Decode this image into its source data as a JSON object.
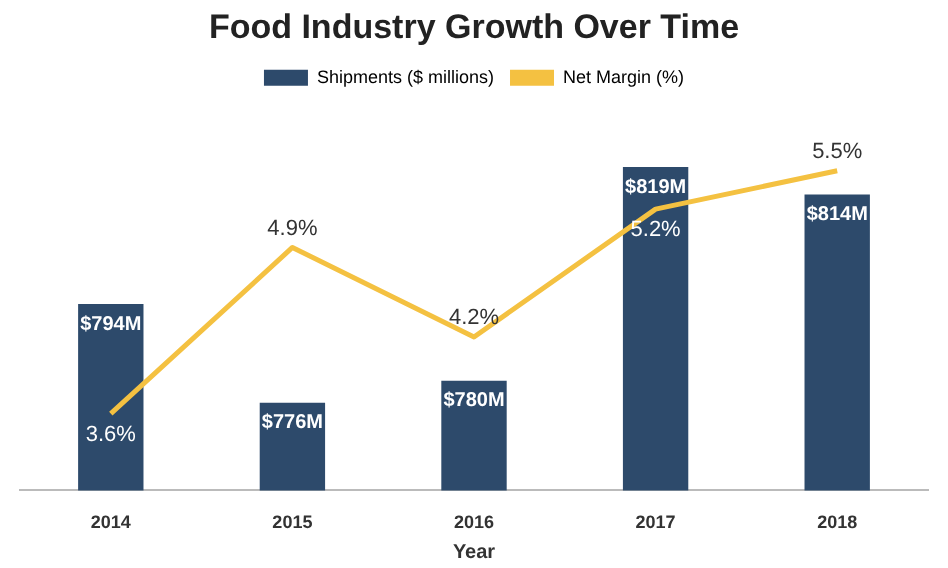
{
  "chart_data": {
    "type": "bar",
    "title": "Food Industry Growth Over Time",
    "xlabel": "Year",
    "categories": [
      "2014",
      "2015",
      "2016",
      "2017",
      "2018"
    ],
    "series": [
      {
        "name": "Shipments ($ millions)",
        "color": "#2d4a6b",
        "values": [
          794,
          776,
          780,
          819,
          814
        ],
        "value_labels": [
          "$794M",
          "$776M",
          "$780M",
          "$819M",
          "$814M"
        ]
      },
      {
        "name": "Net Margin (%)",
        "type": "line",
        "axis": "y2",
        "color": "#f4c141",
        "values": [
          3.6,
          4.9,
          4.2,
          5.2,
          5.5
        ],
        "value_labels": [
          "3.6%",
          "4.9%",
          "4.2%",
          "5.2%",
          "5.5%"
        ]
      }
    ],
    "tick_labels": "x",
    "legend": "top",
    "grid": false,
    "marker": "none"
  }
}
